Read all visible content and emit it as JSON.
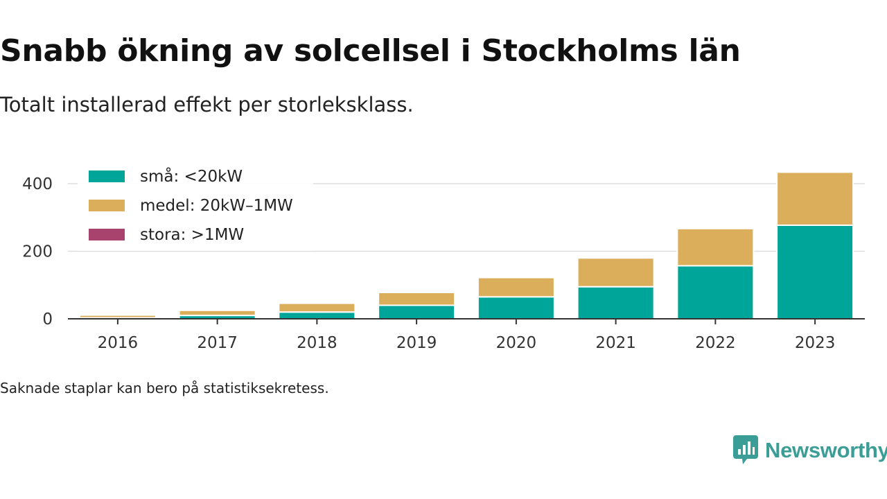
{
  "header": {
    "title": "Snabb ökning av solcellsel i Stockholms län",
    "subtitle": "Totalt installerad effekt per storleksklass."
  },
  "footer": {
    "note": "Saknade staplar kan bero på statistiksekretess.",
    "brand": "Newsworthy"
  },
  "colors": {
    "sma": "#00a59a",
    "medel": "#dbae5c",
    "stora": "#a8436e",
    "brand": "#3a9e96"
  },
  "chart_data": {
    "type": "bar",
    "stacked": true,
    "categories": [
      "2016",
      "2017",
      "2018",
      "2019",
      "2020",
      "2021",
      "2022",
      "2023"
    ],
    "series": [
      {
        "name": "små: <20kW",
        "color": "#00a59a",
        "values": [
          3,
          10,
          20,
          40,
          65,
          95,
          157,
          277
        ]
      },
      {
        "name": "medel: 20kW–1MW",
        "color": "#dbae5c",
        "values": [
          8,
          15,
          26,
          38,
          57,
          85,
          110,
          157
        ]
      },
      {
        "name": "stora: >1MW",
        "color": "#a8436e",
        "values": [
          0,
          0,
          0,
          0,
          0,
          0,
          0,
          0
        ]
      }
    ],
    "ylim": [
      0,
      450
    ],
    "yticks": [
      0,
      200,
      400
    ],
    "grid": true,
    "legend": "top-left"
  }
}
